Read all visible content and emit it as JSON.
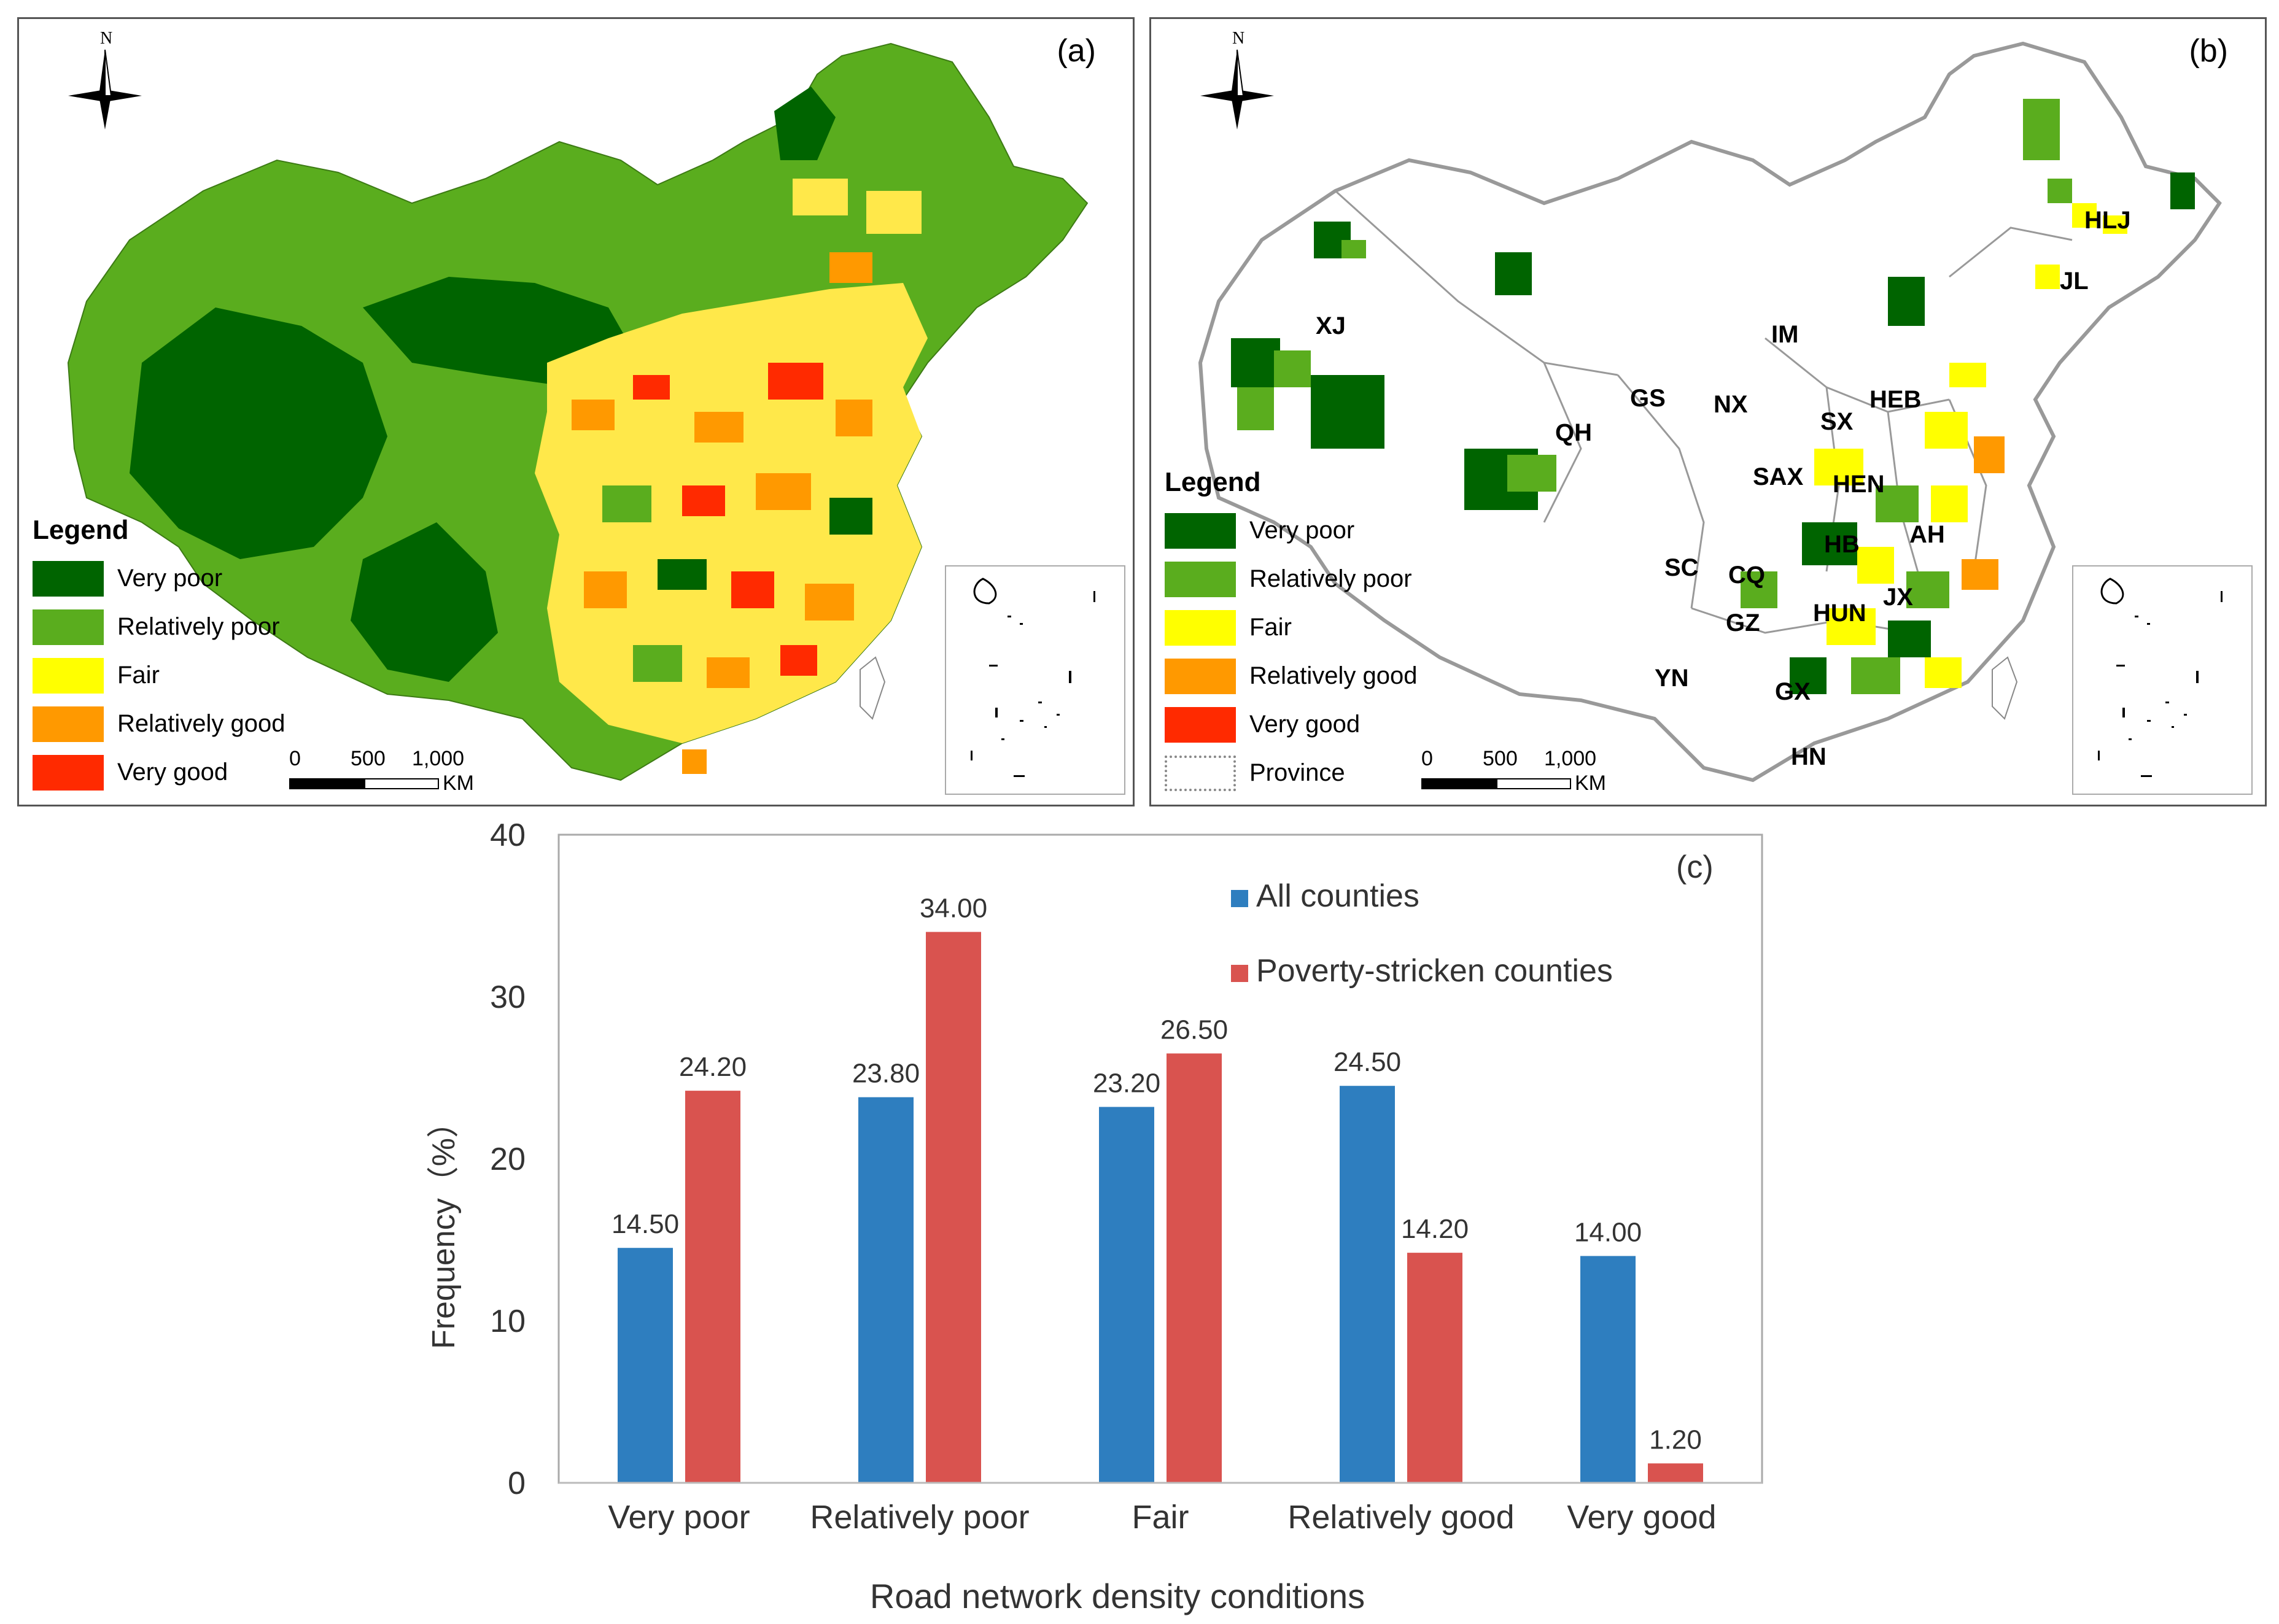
{
  "panel_a": {
    "label": "(a)",
    "north_label": "N",
    "legend": {
      "title": "Legend",
      "items": [
        {
          "label": "Very poor",
          "color": "#006400"
        },
        {
          "label": "Relatively poor",
          "color": "#5aad1e"
        },
        {
          "label": "Fair",
          "color": "#ffff00"
        },
        {
          "label": "Relatively good",
          "color": "#ff9900"
        },
        {
          "label": "Very good",
          "color": "#ff2a00"
        }
      ]
    },
    "scale": {
      "t0": "0",
      "t1": "500",
      "t2": "1,000",
      "unit": "KM"
    }
  },
  "panel_b": {
    "label": "(b)",
    "north_label": "N",
    "legend": {
      "title": "Legend",
      "items": [
        {
          "label": "Very poor",
          "color": "#006400"
        },
        {
          "label": "Relatively poor",
          "color": "#5aad1e"
        },
        {
          "label": "Fair",
          "color": "#ffff00"
        },
        {
          "label": "Relatively good",
          "color": "#ff9900"
        },
        {
          "label": "Very good",
          "color": "#ff2a00"
        },
        {
          "label": "Province",
          "color": "#ffffff"
        }
      ]
    },
    "scale": {
      "t0": "0",
      "t1": "500",
      "t2": "1,000",
      "unit": "KM"
    },
    "provinces": [
      "XJ",
      "IM",
      "HLJ",
      "JL",
      "GS",
      "NX",
      "QH",
      "SX",
      "HEB",
      "SAX",
      "HEN",
      "AH",
      "HB",
      "SC",
      "CQ",
      "JX",
      "HUN",
      "GZ",
      "YN",
      "GX",
      "HN"
    ]
  },
  "chart_data": {
    "type": "bar",
    "panel_label": "(c)",
    "categories": [
      "Very poor",
      "Relatively poor",
      "Fair",
      "Relatively good",
      "Very good"
    ],
    "series": [
      {
        "name": "All counties",
        "color": "#2e7ebf",
        "values": [
          14.5,
          23.8,
          23.2,
          24.5,
          14.0
        ],
        "labels": [
          "14.50",
          "23.80",
          "23.20",
          "24.50",
          "14.00"
        ]
      },
      {
        "name": "Poverty-stricken counties",
        "color": "#d9534f",
        "values": [
          24.2,
          34.0,
          26.5,
          14.2,
          1.2
        ],
        "labels": [
          "24.20",
          "34.00",
          "26.50",
          "14.20",
          "1.20"
        ]
      }
    ],
    "ylim": [
      0,
      40
    ],
    "yticks": [
      "0",
      "10",
      "20",
      "30",
      "40"
    ],
    "ylabel": "Frequency（%）",
    "xlabel": "Road network density conditions"
  }
}
